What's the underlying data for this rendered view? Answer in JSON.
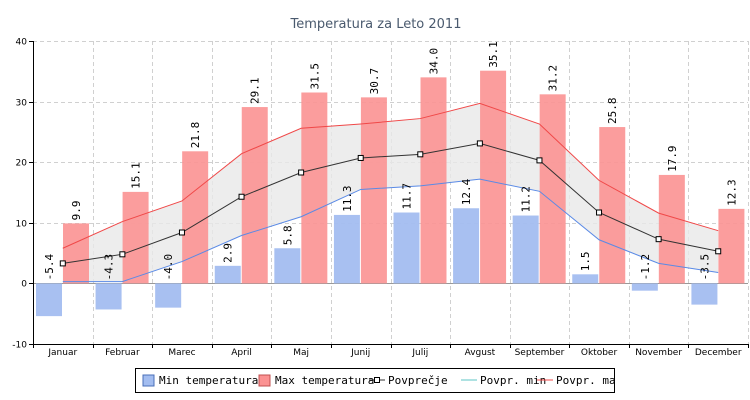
{
  "chart_data": {
    "type": "bar",
    "title": "Temperatura za Leto 2011",
    "categories": [
      "Januar",
      "Februar",
      "Marec",
      "April",
      "Maj",
      "Junij",
      "Julij",
      "Avgust",
      "September",
      "Oktober",
      "November",
      "December"
    ],
    "ylim": [
      -10,
      40
    ],
    "yticks": [
      -10,
      0,
      10,
      20,
      30,
      40
    ],
    "grid": true,
    "legend_placement": "bottom",
    "series": [
      {
        "name": "Min temperatura",
        "kind": "bar",
        "color": "#a3bdf0",
        "values": [
          -5.4,
          -4.3,
          -4.0,
          2.9,
          5.8,
          11.3,
          11.7,
          12.4,
          11.2,
          1.5,
          -1.2,
          -3.5
        ]
      },
      {
        "name": "Max temperatura",
        "kind": "bar",
        "color": "#fb9292",
        "values": [
          9.9,
          15.1,
          21.8,
          29.1,
          31.5,
          30.7,
          34.0,
          35.1,
          31.2,
          25.8,
          17.9,
          12.3
        ]
      },
      {
        "name": "Povprečje",
        "kind": "line",
        "color": "#333333",
        "values": [
          3.3,
          4.8,
          8.4,
          14.3,
          18.3,
          20.7,
          21.3,
          23.1,
          20.3,
          11.7,
          7.3,
          5.3
        ]
      },
      {
        "name": "Povpr. min",
        "kind": "line",
        "color": "#5a8ae6",
        "values": [
          0.3,
          0.3,
          3.6,
          7.9,
          11.0,
          15.5,
          16.1,
          17.2,
          15.2,
          7.2,
          3.3,
          1.8
        ]
      },
      {
        "name": "Povpr. max",
        "kind": "line",
        "color": "#f04848",
        "values": [
          5.8,
          10.2,
          13.6,
          21.4,
          25.6,
          26.3,
          27.2,
          29.7,
          26.3,
          17.0,
          11.6,
          8.7
        ]
      }
    ],
    "value_labels": [
      "-5.4",
      "-4.3",
      "-4.0",
      "2.9",
      "5.8",
      "11.3",
      "11.7",
      "12.4",
      "11.2",
      "1.5",
      "-1.2",
      "-3.5"
    ],
    "max_labels": [
      "9.9",
      "15.1",
      "21.8",
      "29.1",
      "31.5",
      "30.7",
      "34.0",
      "35.1",
      "31.2",
      "25.8",
      "17.9",
      "12.3"
    ]
  }
}
